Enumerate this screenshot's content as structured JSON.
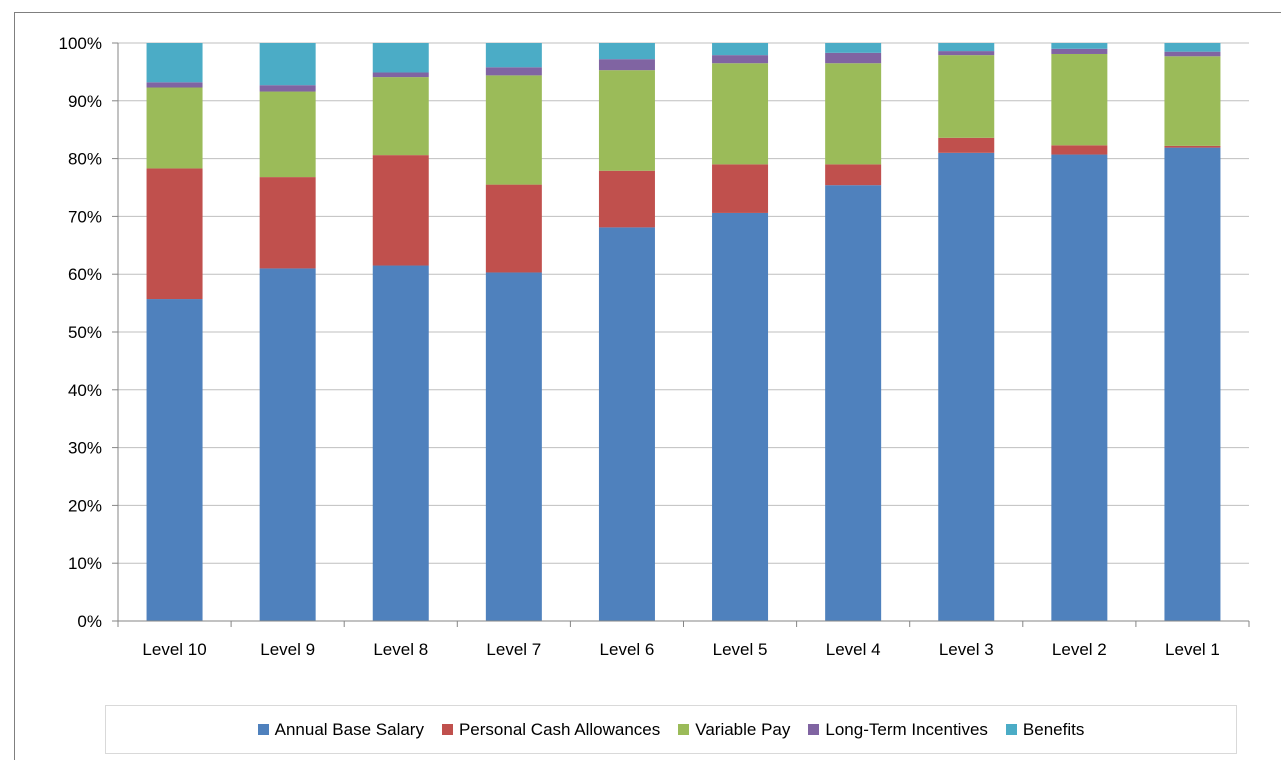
{
  "chart_data": {
    "type": "bar",
    "stacked": true,
    "percent_stacked": true,
    "categories": [
      "Level 10",
      "Level 9",
      "Level 8",
      "Level 7",
      "Level 6",
      "Level 5",
      "Level 4",
      "Level 3",
      "Level 2",
      "Level 1"
    ],
    "series": [
      {
        "name": "Annual Base Salary",
        "color": "#4f81bd",
        "values": [
          55.7,
          61.0,
          61.5,
          60.3,
          68.1,
          70.6,
          75.4,
          81.0,
          80.7,
          81.9
        ]
      },
      {
        "name": "Personal Cash Allowances",
        "color": "#c0504d",
        "values": [
          22.6,
          15.8,
          19.1,
          15.2,
          9.8,
          8.4,
          3.6,
          2.6,
          1.6,
          0.3
        ]
      },
      {
        "name": "Variable Pay",
        "color": "#9bbb59",
        "values": [
          14.0,
          14.8,
          13.5,
          18.9,
          17.4,
          17.5,
          17.5,
          14.3,
          15.8,
          15.5
        ]
      },
      {
        "name": "Long-Term Incentives",
        "color": "#8064a2",
        "values": [
          0.9,
          1.1,
          0.8,
          1.4,
          1.9,
          1.4,
          1.8,
          0.7,
          0.9,
          0.8
        ]
      },
      {
        "name": "Benefits",
        "color": "#4bacc6",
        "values": [
          6.8,
          7.3,
          5.1,
          4.2,
          2.8,
          2.1,
          1.7,
          1.4,
          1.0,
          1.5
        ]
      }
    ],
    "ylim": [
      0,
      100
    ],
    "yticks": [
      "0%",
      "10%",
      "20%",
      "30%",
      "40%",
      "50%",
      "60%",
      "70%",
      "80%",
      "90%",
      "100%"
    ],
    "grid": true,
    "legend_position": "bottom",
    "title": "",
    "xlabel": "",
    "ylabel": ""
  }
}
